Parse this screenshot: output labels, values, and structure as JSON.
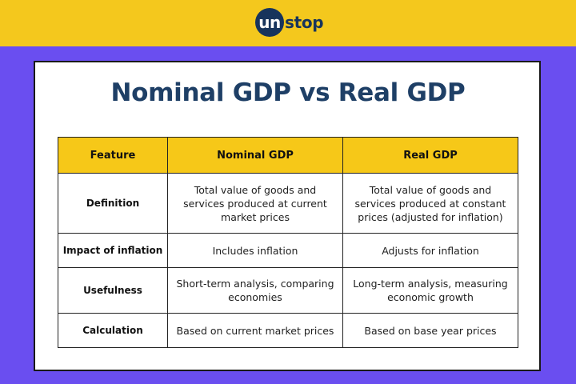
{
  "brand": {
    "logo_circle": "un",
    "logo_rest": "stop",
    "colors": {
      "top_band": "#f4c81d",
      "background": "#6a4ef0",
      "header_cell": "#f6c818",
      "title": "#1e3f66",
      "logo": "#17345c"
    }
  },
  "title": "Nominal GDP vs Real GDP",
  "table": {
    "headers": [
      "Feature",
      "Nominal GDP",
      "Real GDP"
    ],
    "rows": [
      {
        "feature": "Definition",
        "nominal": "Total value of goods and services produced at current market prices",
        "real": "Total value of goods and services produced at constant prices (adjusted for inflation)"
      },
      {
        "feature": "Impact of inflation",
        "nominal": "Includes inflation",
        "real": "Adjusts for inflation"
      },
      {
        "feature": "Usefulness",
        "nominal": "Short-term analysis, comparing economies",
        "real": "Long-term analysis, measuring economic growth"
      },
      {
        "feature": "Calculation",
        "nominal": "Based on current market prices",
        "real": "Based on base year prices"
      }
    ]
  }
}
